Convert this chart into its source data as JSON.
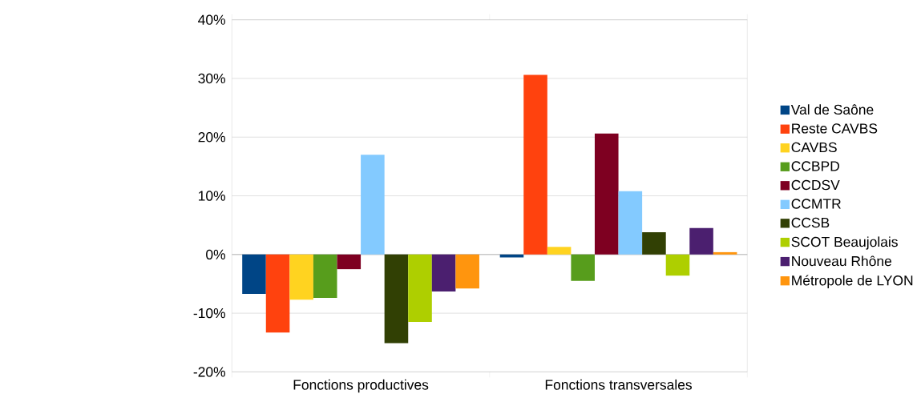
{
  "chart_data": {
    "type": "bar",
    "categories": [
      "Fonctions productives",
      "Fonctions transversales"
    ],
    "series": [
      {
        "name": "Val de Saône",
        "color": "#004586",
        "values": [
          -6.7,
          -0.5
        ]
      },
      {
        "name": "Reste CAVBS",
        "color": "#ff420e",
        "values": [
          -13.3,
          30.6
        ]
      },
      {
        "name": "CAVBS",
        "color": "#ffd320",
        "values": [
          -7.7,
          1.3
        ]
      },
      {
        "name": "CCBPD",
        "color": "#579d1c",
        "values": [
          -7.4,
          -4.5
        ]
      },
      {
        "name": "CCDSV",
        "color": "#7e0021",
        "values": [
          -2.5,
          20.6
        ]
      },
      {
        "name": "CCMTR",
        "color": "#83caff",
        "values": [
          17.0,
          10.8
        ]
      },
      {
        "name": "CCSB",
        "color": "#314004",
        "values": [
          -15.1,
          3.8
        ]
      },
      {
        "name": "SCOT Beaujolais",
        "color": "#aecf00",
        "values": [
          -11.5,
          -3.6
        ]
      },
      {
        "name": "Nouveau Rhône",
        "color": "#4b1f6f",
        "values": [
          -6.3,
          4.5
        ]
      },
      {
        "name": "Métropole de LYON",
        "color": "#ff950e",
        "values": [
          -5.8,
          0.4
        ]
      }
    ],
    "ylim": [
      -20,
      40
    ],
    "yticks": [
      {
        "value": -20,
        "label": "-20%"
      },
      {
        "value": -10,
        "label": "-10%"
      },
      {
        "value": 0,
        "label": "0%"
      },
      {
        "value": 10,
        "label": "10%"
      },
      {
        "value": 20,
        "label": "20%"
      },
      {
        "value": 30,
        "label": "30%"
      },
      {
        "value": 40,
        "label": "40%"
      }
    ],
    "grid": "y",
    "legend": "right"
  }
}
